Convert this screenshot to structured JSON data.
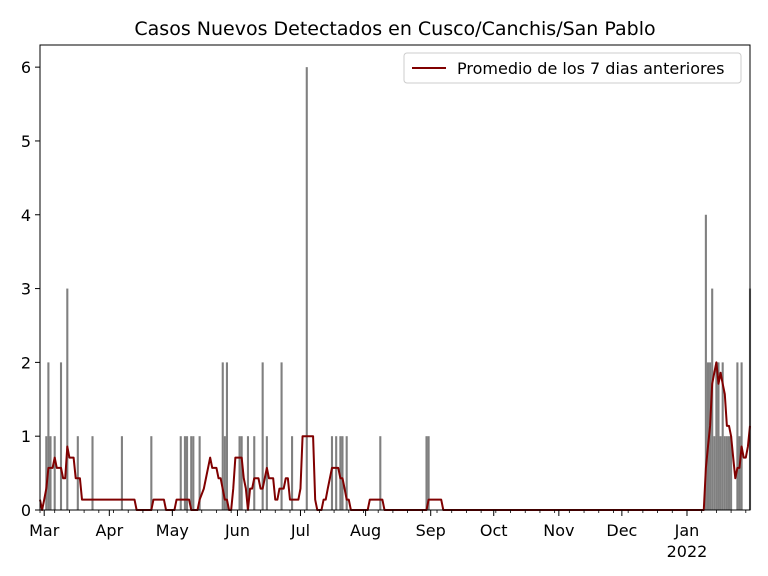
{
  "chart_data": {
    "type": "bar",
    "title": "Casos Nuevos Detectados en Cusco/Canchis/San Pablo",
    "xlabel": "",
    "ylabel": "",
    "ylim": [
      0,
      6.3
    ],
    "yticks": [
      0,
      1,
      2,
      3,
      4,
      5,
      6
    ],
    "x_month_ticks": [
      "Mar",
      "Apr",
      "May",
      "Jun",
      "Jul",
      "Aug",
      "Sep",
      "Oct",
      "Nov",
      "Dec",
      "Jan"
    ],
    "x_year_label": "2022",
    "x_range": [
      "2021-02-27",
      "2022-01-31"
    ],
    "legend": {
      "position": "top-right",
      "entries": [
        "Promedio de los 7 dias anteriores"
      ]
    },
    "colors": {
      "bars": "#808080",
      "line": "#800000",
      "axis": "#000000"
    },
    "grid": false,
    "series": [
      {
        "name": "",
        "kind": "bar",
        "points": [
          [
            "2021-03-02",
            1
          ],
          [
            "2021-03-03",
            2
          ],
          [
            "2021-03-04",
            1
          ],
          [
            "2021-03-06",
            1
          ],
          [
            "2021-03-09",
            2
          ],
          [
            "2021-03-12",
            3
          ],
          [
            "2021-03-17",
            1
          ],
          [
            "2021-03-24",
            1
          ],
          [
            "2021-04-07",
            1
          ],
          [
            "2021-04-21",
            1
          ],
          [
            "2021-05-05",
            1
          ],
          [
            "2021-05-07",
            1
          ],
          [
            "2021-05-08",
            1
          ],
          [
            "2021-05-10",
            1
          ],
          [
            "2021-05-11",
            1
          ],
          [
            "2021-05-14",
            1
          ],
          [
            "2021-05-25",
            2
          ],
          [
            "2021-05-26",
            1
          ],
          [
            "2021-05-27",
            2
          ],
          [
            "2021-06-02",
            1
          ],
          [
            "2021-06-03",
            1
          ],
          [
            "2021-06-06",
            1
          ],
          [
            "2021-06-09",
            1
          ],
          [
            "2021-06-13",
            2
          ],
          [
            "2021-06-15",
            1
          ],
          [
            "2021-06-22",
            2
          ],
          [
            "2021-06-27",
            1
          ],
          [
            "2021-07-04",
            6
          ],
          [
            "2021-07-16",
            1
          ],
          [
            "2021-07-18",
            1
          ],
          [
            "2021-07-20",
            1
          ],
          [
            "2021-07-21",
            1
          ],
          [
            "2021-07-23",
            1
          ],
          [
            "2021-08-08",
            1
          ],
          [
            "2021-08-30",
            1
          ],
          [
            "2021-08-31",
            1
          ],
          [
            "2022-01-10",
            4
          ],
          [
            "2022-01-11",
            2
          ],
          [
            "2022-01-12",
            2
          ],
          [
            "2022-01-13",
            3
          ],
          [
            "2022-01-14",
            1
          ],
          [
            "2022-01-15",
            2
          ],
          [
            "2022-01-16",
            2
          ],
          [
            "2022-01-17",
            1
          ],
          [
            "2022-01-18",
            2
          ],
          [
            "2022-01-19",
            1
          ],
          [
            "2022-01-20",
            1
          ],
          [
            "2022-01-21",
            1
          ],
          [
            "2022-01-22",
            1
          ],
          [
            "2022-01-25",
            2
          ],
          [
            "2022-01-26",
            1
          ],
          [
            "2022-01-27",
            2
          ],
          [
            "2022-01-31",
            3
          ]
        ]
      },
      {
        "name": "Promedio de los 7 dias anteriores",
        "kind": "line",
        "points": [
          [
            "2021-02-27",
            0.14
          ],
          [
            "2021-02-28",
            0
          ],
          [
            "2021-03-01",
            0.14
          ],
          [
            "2021-03-02",
            0.29
          ],
          [
            "2021-03-03",
            0.57
          ],
          [
            "2021-03-05",
            0.57
          ],
          [
            "2021-03-06",
            0.71
          ],
          [
            "2021-03-07",
            0.57
          ],
          [
            "2021-03-09",
            0.57
          ],
          [
            "2021-03-10",
            0.43
          ],
          [
            "2021-03-11",
            0.43
          ],
          [
            "2021-03-12",
            0.86
          ],
          [
            "2021-03-13",
            0.71
          ],
          [
            "2021-03-15",
            0.71
          ],
          [
            "2021-03-16",
            0.43
          ],
          [
            "2021-03-18",
            0.43
          ],
          [
            "2021-03-19",
            0.14
          ],
          [
            "2021-03-31",
            0.14
          ],
          [
            "2021-04-13",
            0.14
          ],
          [
            "2021-04-14",
            0
          ],
          [
            "2021-04-21",
            0
          ],
          [
            "2021-04-22",
            0.14
          ],
          [
            "2021-04-27",
            0.14
          ],
          [
            "2021-04-28",
            0
          ],
          [
            "2021-05-02",
            0
          ],
          [
            "2021-05-03",
            0.14
          ],
          [
            "2021-05-09",
            0.14
          ],
          [
            "2021-05-10",
            0
          ],
          [
            "2021-05-13",
            0
          ],
          [
            "2021-05-14",
            0.14
          ],
          [
            "2021-05-16",
            0.29
          ],
          [
            "2021-05-17",
            0.43
          ],
          [
            "2021-05-18",
            0.57
          ],
          [
            "2021-05-19",
            0.71
          ],
          [
            "2021-05-20",
            0.57
          ],
          [
            "2021-05-22",
            0.57
          ],
          [
            "2021-05-23",
            0.43
          ],
          [
            "2021-05-24",
            0.43
          ],
          [
            "2021-05-26",
            0.14
          ],
          [
            "2021-05-27",
            0.14
          ],
          [
            "2021-05-28",
            0
          ],
          [
            "2021-05-29",
            0
          ],
          [
            "2021-05-30",
            0.29
          ],
          [
            "2021-05-31",
            0.71
          ],
          [
            "2021-06-03",
            0.71
          ],
          [
            "2021-06-04",
            0.43
          ],
          [
            "2021-06-05",
            0.29
          ],
          [
            "2021-06-06",
            0
          ],
          [
            "2021-06-07",
            0.29
          ],
          [
            "2021-06-08",
            0.29
          ],
          [
            "2021-06-09",
            0.43
          ],
          [
            "2021-06-11",
            0.43
          ],
          [
            "2021-06-12",
            0.29
          ],
          [
            "2021-06-13",
            0.29
          ],
          [
            "2021-06-14",
            0.43
          ],
          [
            "2021-06-15",
            0.57
          ],
          [
            "2021-06-16",
            0.43
          ],
          [
            "2021-06-18",
            0.43
          ],
          [
            "2021-06-19",
            0.14
          ],
          [
            "2021-06-20",
            0.14
          ],
          [
            "2021-06-21",
            0.29
          ],
          [
            "2021-06-23",
            0.29
          ],
          [
            "2021-06-24",
            0.43
          ],
          [
            "2021-06-25",
            0.43
          ],
          [
            "2021-06-26",
            0.14
          ],
          [
            "2021-06-29",
            0.14
          ],
          [
            "2021-06-30",
            0.14
          ],
          [
            "2021-07-01",
            0.29
          ],
          [
            "2021-07-02",
            1
          ],
          [
            "2021-07-06",
            1
          ],
          [
            "2021-07-07",
            1
          ],
          [
            "2021-07-08",
            0.14
          ],
          [
            "2021-07-09",
            0
          ],
          [
            "2021-07-11",
            0
          ],
          [
            "2021-07-12",
            0.14
          ],
          [
            "2021-07-13",
            0.14
          ],
          [
            "2021-07-14",
            0.29
          ],
          [
            "2021-07-15",
            0.43
          ],
          [
            "2021-07-16",
            0.57
          ],
          [
            "2021-07-19",
            0.57
          ],
          [
            "2021-07-20",
            0.43
          ],
          [
            "2021-07-21",
            0.43
          ],
          [
            "2021-07-22",
            0.29
          ],
          [
            "2021-07-23",
            0.14
          ],
          [
            "2021-07-24",
            0.14
          ],
          [
            "2021-07-25",
            0
          ],
          [
            "2021-07-26",
            0
          ],
          [
            "2021-08-02",
            0
          ],
          [
            "2021-08-03",
            0.14
          ],
          [
            "2021-08-09",
            0.14
          ],
          [
            "2021-08-10",
            0
          ],
          [
            "2021-08-30",
            0
          ],
          [
            "2021-08-31",
            0.14
          ],
          [
            "2021-09-06",
            0.14
          ],
          [
            "2021-09-07",
            0
          ],
          [
            "2022-01-09",
            0
          ],
          [
            "2022-01-10",
            0.57
          ],
          [
            "2022-01-11",
            0.86
          ],
          [
            "2022-01-12",
            1.14
          ],
          [
            "2022-01-13",
            1.71
          ],
          [
            "2022-01-14",
            1.86
          ],
          [
            "2022-01-15",
            2
          ],
          [
            "2022-01-16",
            1.71
          ],
          [
            "2022-01-17",
            1.86
          ],
          [
            "2022-01-18",
            1.71
          ],
          [
            "2022-01-19",
            1.57
          ],
          [
            "2022-01-20",
            1.14
          ],
          [
            "2022-01-21",
            1.14
          ],
          [
            "2022-01-22",
            1
          ],
          [
            "2022-01-23",
            0.71
          ],
          [
            "2022-01-24",
            0.43
          ],
          [
            "2022-01-25",
            0.57
          ],
          [
            "2022-01-26",
            0.57
          ],
          [
            "2022-01-27",
            0.86
          ],
          [
            "2022-01-28",
            0.71
          ],
          [
            "2022-01-29",
            0.71
          ],
          [
            "2022-01-30",
            0.86
          ],
          [
            "2022-01-31",
            1.14
          ]
        ]
      }
    ]
  }
}
